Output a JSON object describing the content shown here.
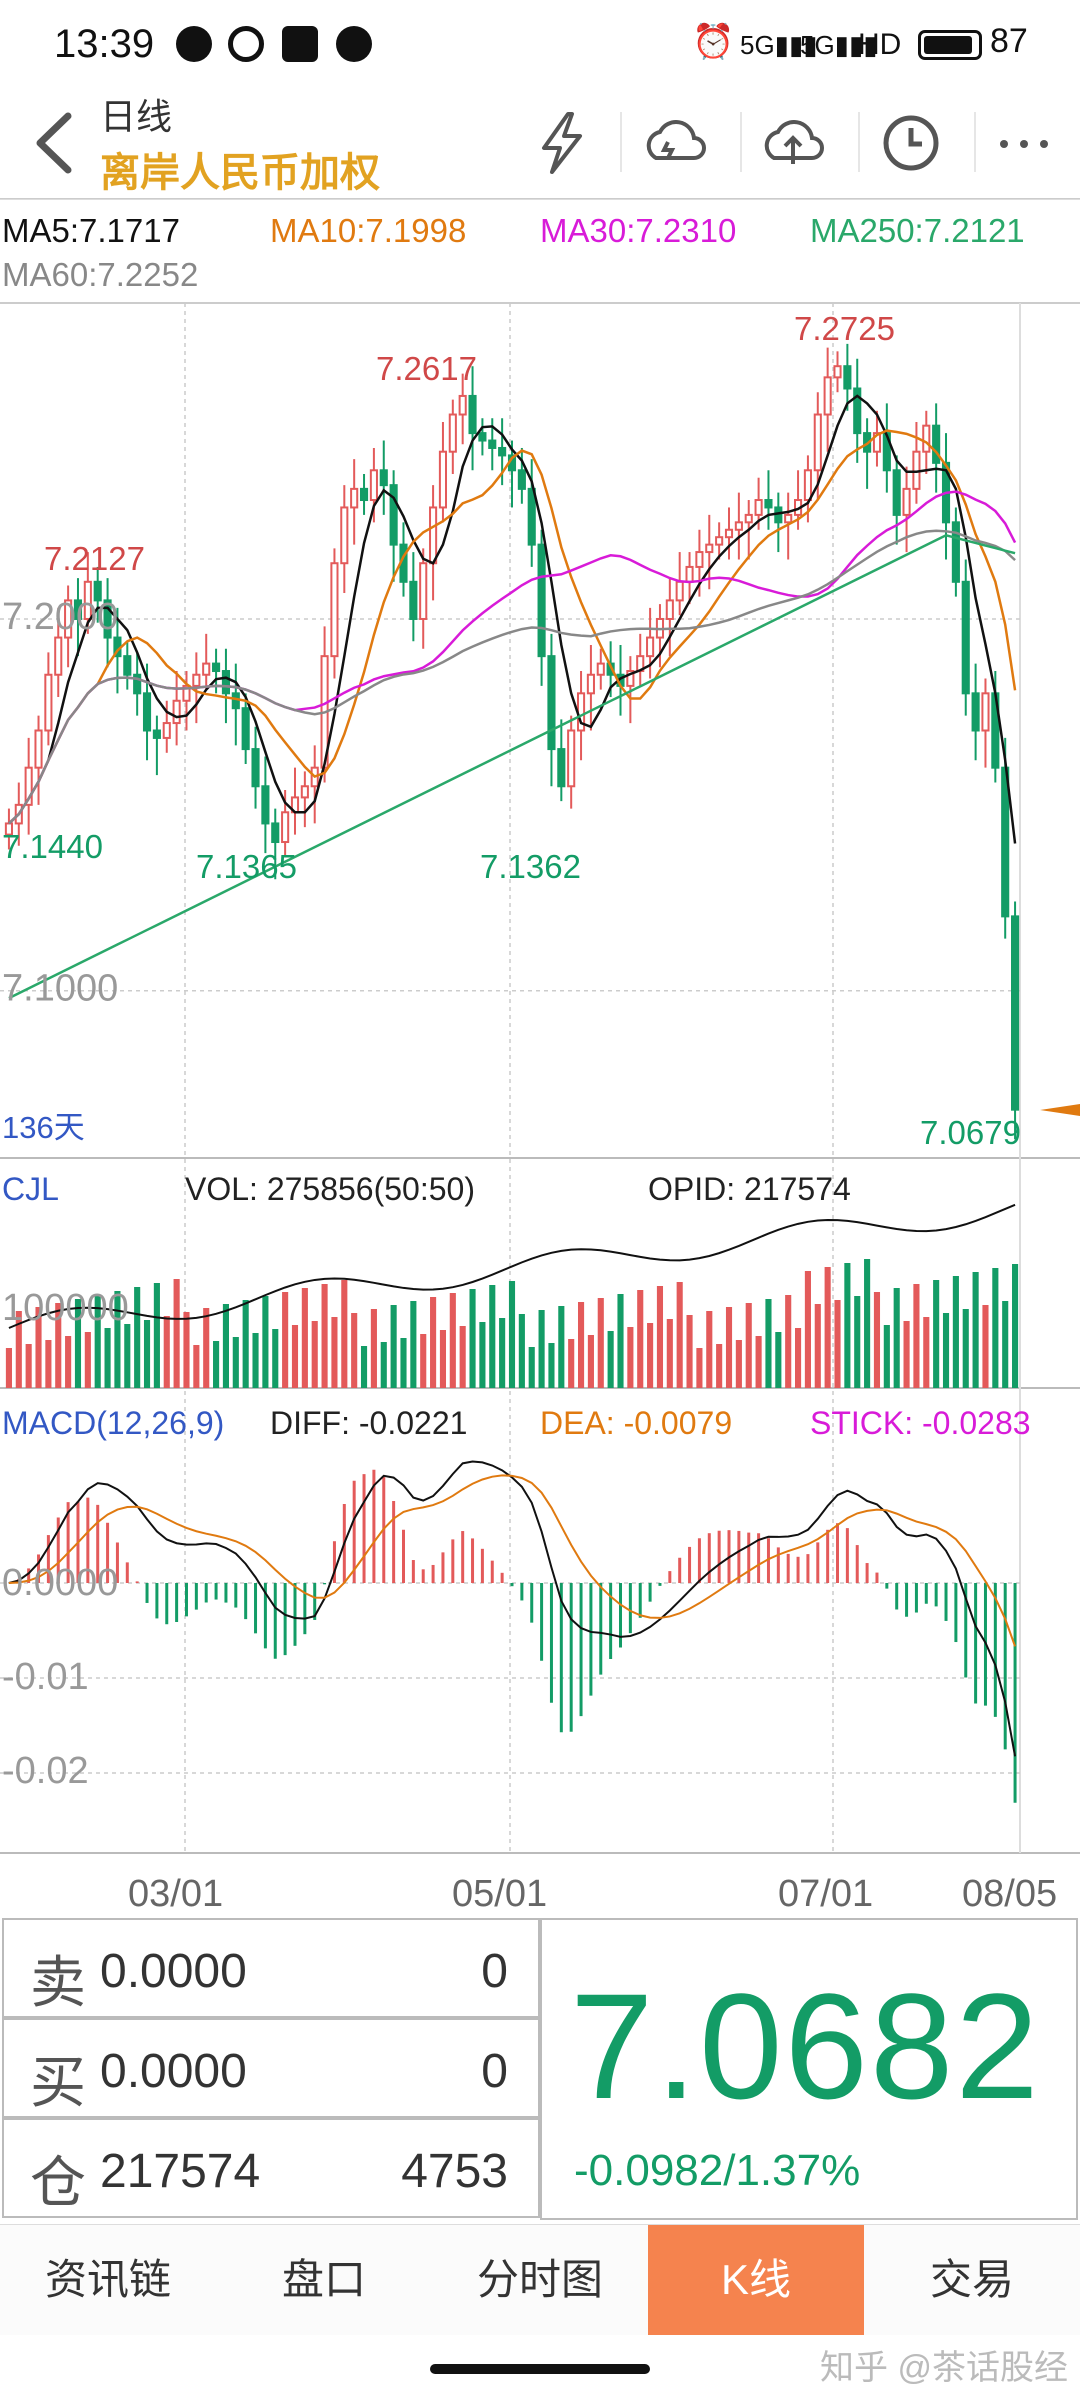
{
  "status_bar": {
    "time": "13:39",
    "battery": "87",
    "net": "HD"
  },
  "header": {
    "back_icon": "chevron-left-icon",
    "title": "日线",
    "subtitle": "离岸人民币加权",
    "icons": [
      "lightning-icon",
      "cloud-download-icon",
      "cloud-upload-icon",
      "clock-icon",
      "more-icon"
    ]
  },
  "ma_legend": {
    "ma5": "MA5:7.1717",
    "ma10": "MA10:7.1998",
    "ma30": "MA30:7.2310",
    "ma250": "MA250:7.2121",
    "ma60": "MA60:7.2252"
  },
  "colors": {
    "up": "#e35a5a",
    "down": "#139c66",
    "ma5": "#111111",
    "ma10": "#e07a10",
    "ma30": "#d81bd8",
    "ma60": "#888888",
    "ma250": "#2aa86a",
    "macd_label": "#3358c4"
  },
  "chart_data": {
    "type": "candlestick",
    "y_axis": {
      "labels": [
        "7.2000",
        "7.1000"
      ],
      "range": [
        7.055,
        7.285
      ]
    },
    "x_axis": {
      "labels": [
        "03/01",
        "05/01",
        "07/01",
        "08/05"
      ]
    },
    "price_annotations": [
      "7.2127",
      "7.2617",
      "7.2725",
      "7.1440",
      "7.1365",
      "7.1362",
      "7.0679"
    ],
    "period_label": "136天",
    "closes": [
      7.145,
      7.15,
      7.16,
      7.17,
      7.185,
      7.195,
      7.205,
      7.2,
      7.21,
      7.205,
      7.195,
      7.19,
      7.185,
      7.18,
      7.17,
      7.168,
      7.172,
      7.178,
      7.182,
      7.185,
      7.188,
      7.186,
      7.18,
      7.176,
      7.165,
      7.155,
      7.145,
      7.14,
      7.148,
      7.152,
      7.155,
      7.16,
      7.19,
      7.215,
      7.23,
      7.235,
      7.232,
      7.24,
      7.236,
      7.22,
      7.21,
      7.2,
      7.215,
      7.23,
      7.245,
      7.255,
      7.26,
      7.25,
      7.248,
      7.246,
      7.244,
      7.24,
      7.235,
      7.22,
      7.19,
      7.165,
      7.155,
      7.17,
      7.18,
      7.185,
      7.188,
      7.185,
      7.182,
      7.186,
      7.19,
      7.195,
      7.2,
      7.205,
      7.21,
      7.214,
      7.218,
      7.22,
      7.222,
      7.224,
      7.226,
      7.228,
      7.232,
      7.23,
      7.226,
      7.228,
      7.232,
      7.24,
      7.255,
      7.265,
      7.268,
      7.262,
      7.25,
      7.245,
      7.25,
      7.24,
      7.228,
      7.235,
      7.245,
      7.252,
      7.242,
      7.226,
      7.21,
      7.18,
      7.17,
      7.18,
      7.16,
      7.12,
      7.068
    ],
    "volume": {
      "label": "CJL",
      "vol": "VOL: 275856(50:50)",
      "opid": "OPID: 217574",
      "axis": "100000"
    },
    "macd": {
      "label": "MACD(12,26,9)",
      "diff": "DIFF: -0.0221",
      "dea": "DEA: -0.0079",
      "stick": "STICK: -0.0283",
      "axis": [
        "0.0000",
        "-0.01",
        "-0.02"
      ]
    }
  },
  "quote": {
    "sell_label": "卖",
    "sell_price": "0.0000",
    "sell_qty": "0",
    "buy_label": "买",
    "buy_price": "0.0000",
    "buy_qty": "0",
    "pos_label": "仓",
    "pos_value": "217574",
    "pos_change": "4753",
    "price": "7.0682",
    "change": "-0.0982/1.37%"
  },
  "tabs": [
    "资讯链",
    "盘口",
    "分时图",
    "K线",
    "交易"
  ],
  "active_tab": 3,
  "watermark": "知乎 @茶话股经"
}
